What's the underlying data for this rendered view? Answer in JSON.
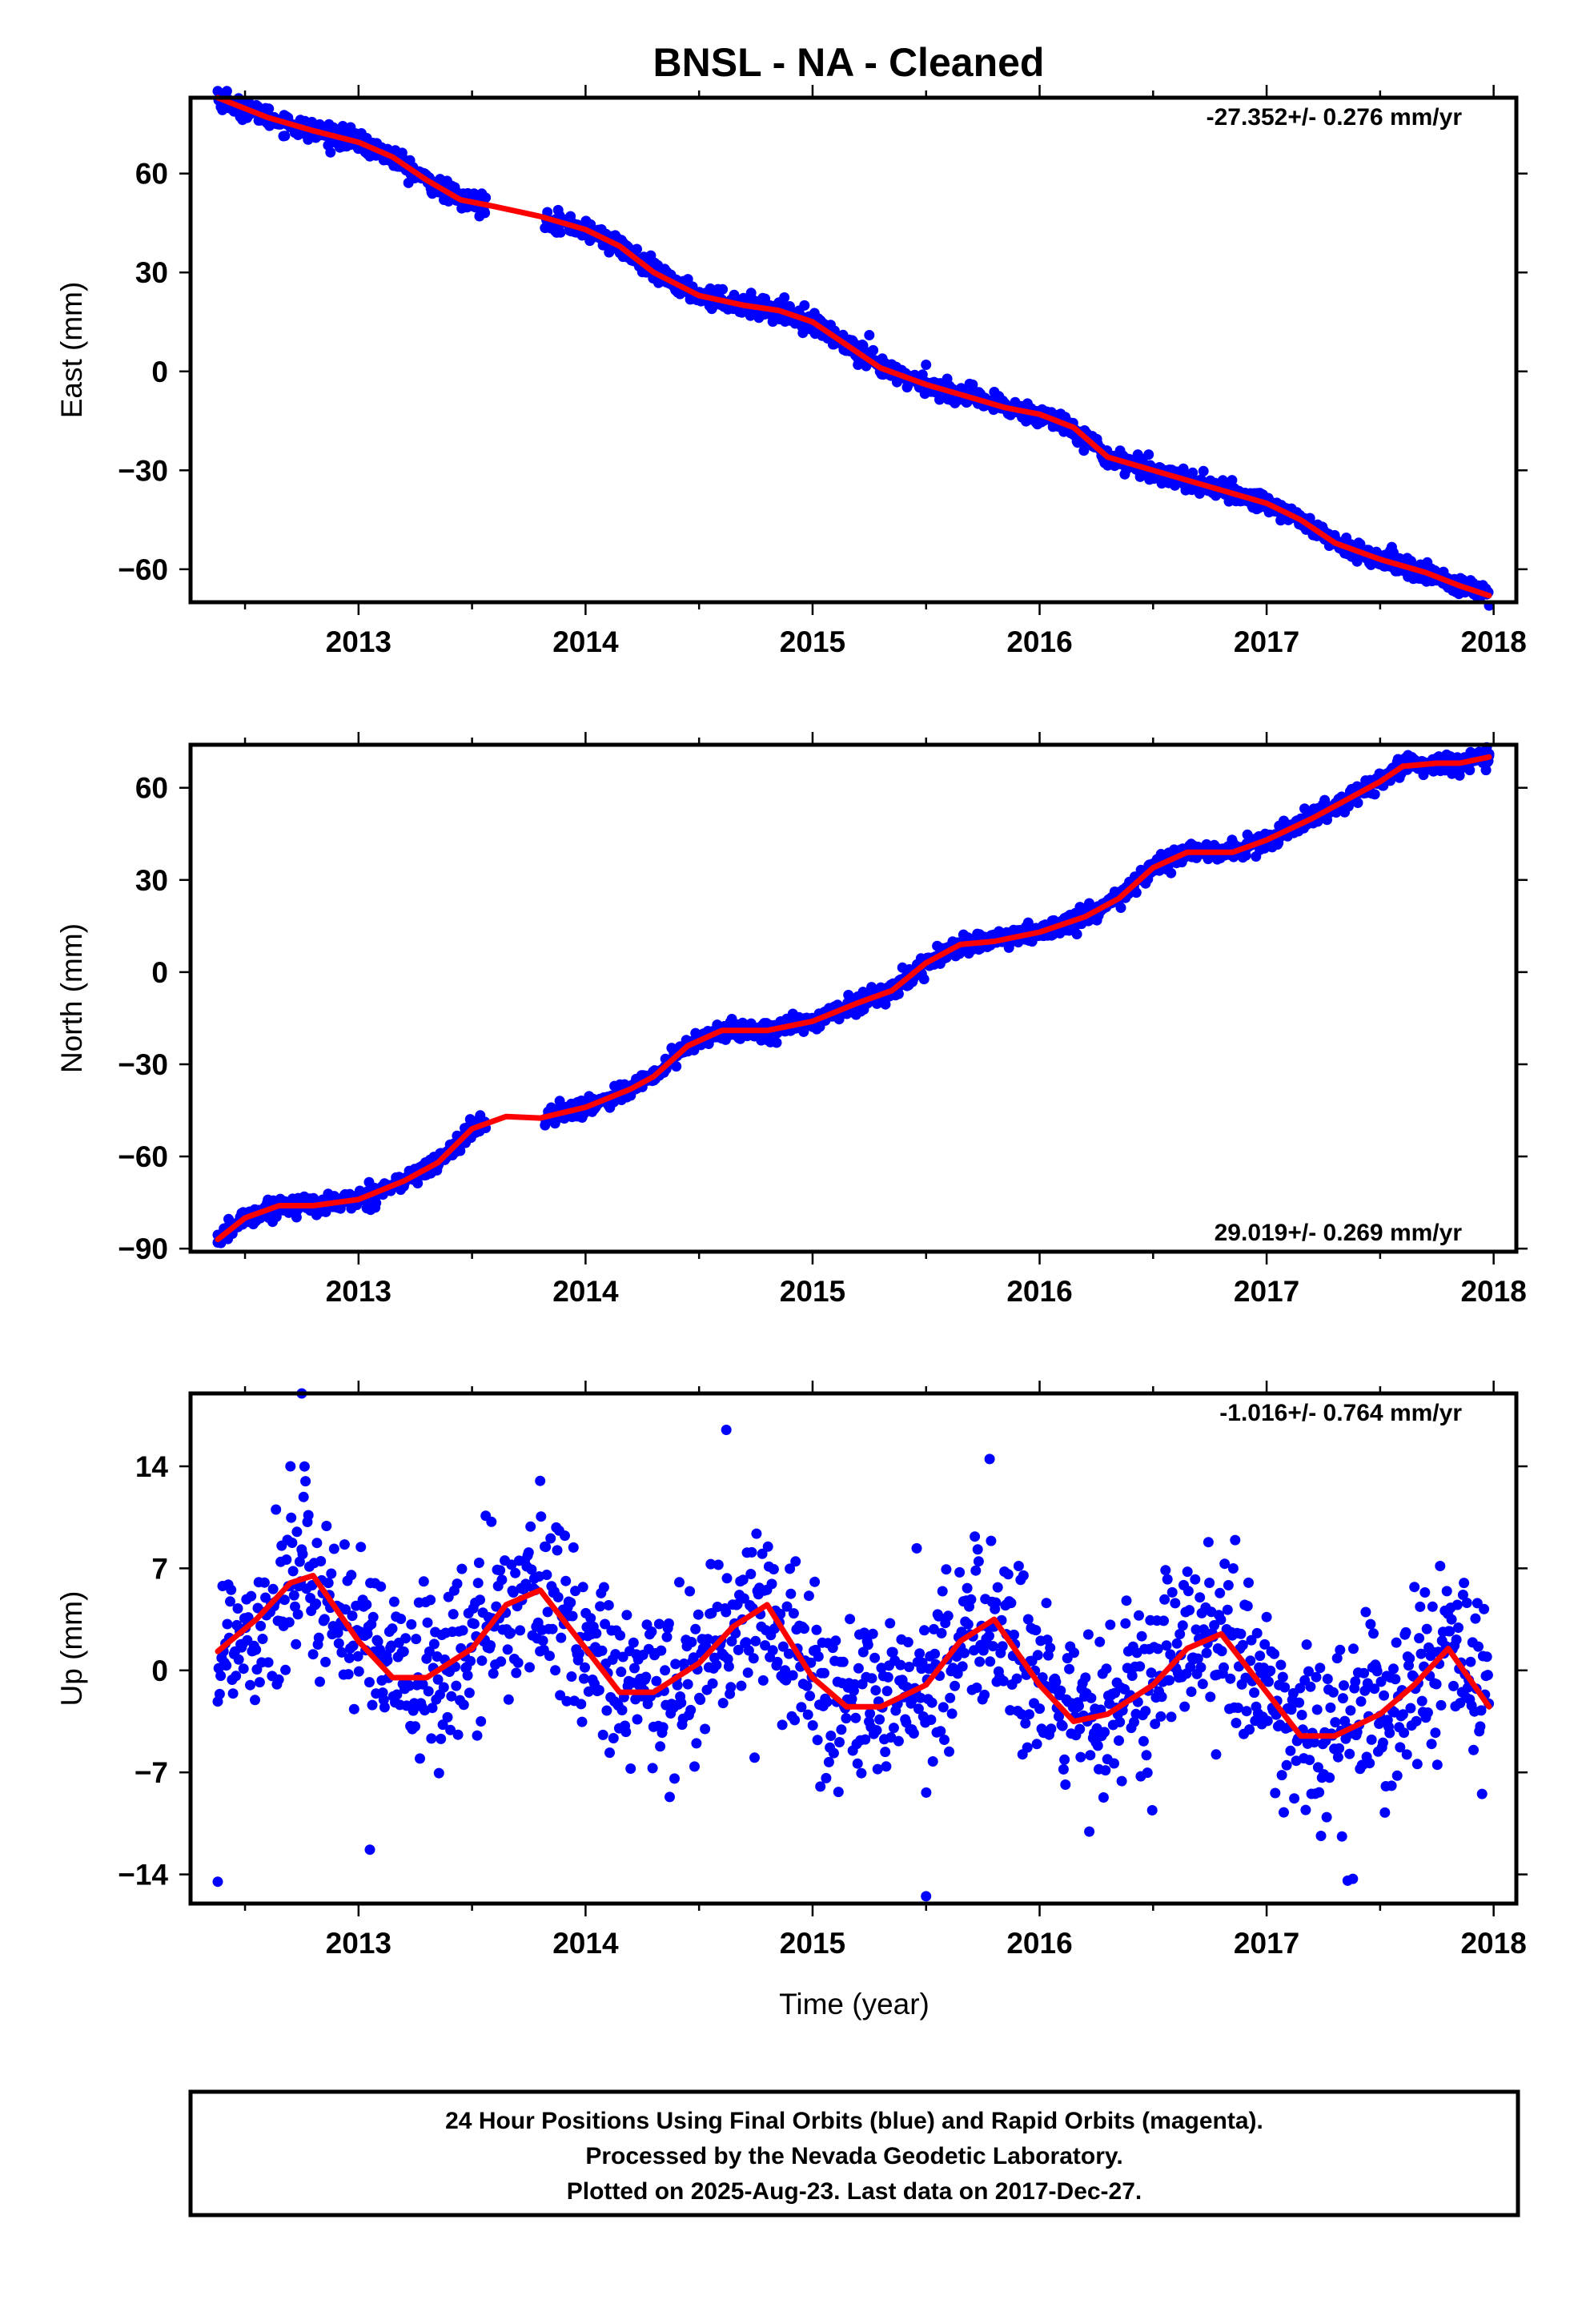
{
  "chart_data": [
    {
      "type": "scatter",
      "title": "BNSL  - NA - Cleaned",
      "ylabel": "East (mm)",
      "xlabel": "",
      "xlim": [
        2012.26,
        2018.1
      ],
      "ylim": [
        -70,
        83
      ],
      "xticks": [
        2013,
        2014,
        2015,
        2016,
        2017,
        2018
      ],
      "xtick_labels": [
        "2013",
        "2014",
        "2015",
        "2016",
        "2017",
        "2018"
      ],
      "yticks": [
        60,
        30,
        0,
        -30,
        -60
      ],
      "ytick_labels": [
        "60",
        "30",
        "0",
        "−30",
        "−60"
      ],
      "rate_label": "-27.352+/- 0.276 mm/yr",
      "colors": {
        "points": "#0000ff",
        "model": "#ff0000"
      },
      "model_curve": {
        "x": [
          2012.38,
          2012.6,
          2012.8,
          2013.0,
          2013.15,
          2013.3,
          2013.45,
          2013.6,
          2013.8,
          2014.0,
          2014.15,
          2014.3,
          2014.5,
          2014.7,
          2014.85,
          2015.0,
          2015.15,
          2015.3,
          2015.5,
          2015.7,
          2015.85,
          2016.0,
          2016.15,
          2016.3,
          2016.5,
          2016.7,
          2016.85,
          2017.0,
          2017.15,
          2017.3,
          2017.5,
          2017.7,
          2017.85,
          2017.98
        ],
        "y": [
          83,
          77,
          73,
          69.5,
          65,
          58,
          52,
          50,
          47,
          43,
          38,
          30,
          23,
          20,
          18.5,
          15,
          8,
          1,
          -4,
          -8,
          -11,
          -13,
          -17,
          -26,
          -30,
          -34,
          -37,
          -40,
          -45,
          -52,
          -57,
          -61,
          -65,
          -68
        ]
      },
      "noise_amplitude_mm": 1.5,
      "outliers": [
        {
          "x": 2012.38,
          "y": 85
        },
        {
          "x": 2012.42,
          "y": 85
        },
        {
          "x": 2015.25,
          "y": 11
        },
        {
          "x": 2015.2,
          "y": 2
        },
        {
          "x": 2015.5,
          "y": 2
        },
        {
          "x": 2017.98,
          "y": -71
        }
      ]
    },
    {
      "type": "scatter",
      "title": "",
      "ylabel": "North (mm)",
      "xlabel": "",
      "xlim": [
        2012.26,
        2018.1
      ],
      "ylim": [
        -91,
        74
      ],
      "xticks": [
        2013,
        2014,
        2015,
        2016,
        2017,
        2018
      ],
      "xtick_labels": [
        "2013",
        "2014",
        "2015",
        "2016",
        "2017",
        "2018"
      ],
      "yticks": [
        60,
        30,
        0,
        -30,
        -60,
        -90
      ],
      "ytick_labels": [
        "60",
        "30",
        "0",
        "−30",
        "−60",
        "−90"
      ],
      "rate_label": "29.019+/- 0.269 mm/yr",
      "colors": {
        "points": "#0000ff",
        "model": "#ff0000"
      },
      "model_curve": {
        "x": [
          2012.38,
          2012.5,
          2012.65,
          2012.8,
          2013.0,
          2013.2,
          2013.35,
          2013.5,
          2013.65,
          2013.8,
          2014.0,
          2014.2,
          2014.3,
          2014.45,
          2014.6,
          2014.8,
          2015.0,
          2015.2,
          2015.35,
          2015.5,
          2015.65,
          2015.8,
          2016.0,
          2016.2,
          2016.35,
          2016.5,
          2016.65,
          2016.85,
          2017.0,
          2017.2,
          2017.35,
          2017.5,
          2017.6,
          2017.75,
          2017.85,
          2017.98
        ],
        "y": [
          -87,
          -80,
          -76,
          -76,
          -74,
          -68,
          -62,
          -51,
          -47,
          -47.5,
          -44,
          -38,
          -34,
          -24,
          -19,
          -19,
          -16,
          -10,
          -6,
          3,
          9,
          10,
          13,
          18,
          24,
          34,
          39,
          39,
          43,
          50,
          56,
          62,
          67,
          68,
          68,
          70
        ]
      },
      "noise_amplitude_mm": 1.5,
      "outliers": [
        {
          "x": 2012.38,
          "y": -88
        },
        {
          "x": 2017.85,
          "y": 64
        },
        {
          "x": 2017.98,
          "y": 71
        }
      ]
    },
    {
      "type": "scatter",
      "title": "",
      "ylabel": "Up (mm)",
      "xlabel": "Time (year)",
      "xlim": [
        2012.26,
        2018.1
      ],
      "ylim": [
        -16,
        19
      ],
      "xticks": [
        2013,
        2014,
        2015,
        2016,
        2017,
        2018
      ],
      "xtick_labels": [
        "2013",
        "2014",
        "2015",
        "2016",
        "2017",
        "2018"
      ],
      "yticks": [
        14,
        7,
        0,
        -7,
        -14
      ],
      "ytick_labels": [
        "14",
        "7",
        "0",
        "−7",
        "−14"
      ],
      "rate_label": "-1.016+/- 0.764 mm/yr",
      "colors": {
        "points": "#0000ff",
        "model": "#ff0000"
      },
      "model_curve": {
        "x": [
          2012.38,
          2012.55,
          2012.7,
          2012.8,
          2013.0,
          2013.15,
          2013.3,
          2013.5,
          2013.65,
          2013.8,
          2014.0,
          2014.15,
          2014.3,
          2014.5,
          2014.65,
          2014.8,
          2015.0,
          2015.15,
          2015.3,
          2015.5,
          2015.65,
          2015.8,
          2016.0,
          2016.15,
          2016.3,
          2016.5,
          2016.65,
          2016.8,
          2017.0,
          2017.15,
          2017.3,
          2017.5,
          2017.65,
          2017.8,
          2017.98
        ],
        "y": [
          1.3,
          3.5,
          6.0,
          6.5,
          2.0,
          -0.5,
          -0.5,
          1.5,
          4.5,
          5.5,
          1.5,
          -1.5,
          -1.5,
          0.5,
          3.0,
          4.5,
          -0.5,
          -2.5,
          -2.5,
          -1.0,
          2.0,
          3.5,
          -1.0,
          -3.5,
          -3.0,
          -1.0,
          1.5,
          2.5,
          -1.5,
          -4.5,
          -4.5,
          -3.0,
          -1.0,
          1.5,
          -2.5
        ]
      },
      "noise_amplitude_mm": 3.0,
      "outliers": [
        {
          "x": 2012.75,
          "y": 19
        },
        {
          "x": 2012.38,
          "y": -14.5
        },
        {
          "x": 2014.62,
          "y": 16.5
        },
        {
          "x": 2015.5,
          "y": -15.5
        },
        {
          "x": 2015.78,
          "y": 14.5
        },
        {
          "x": 2017.38,
          "y": -14.3
        },
        {
          "x": 2012.7,
          "y": 14
        },
        {
          "x": 2013.8,
          "y": 13
        },
        {
          "x": 2013.05,
          "y": -12.3
        }
      ]
    }
  ],
  "footer": {
    "line1": "24 Hour Positions Using Final Orbits (blue) and Rapid Orbits (magenta).",
    "line2": "Processed by the Nevada Geodetic Laboratory.",
    "line3": "Plotted on 2025-Aug-23. Last data on 2017-Dec-27."
  }
}
